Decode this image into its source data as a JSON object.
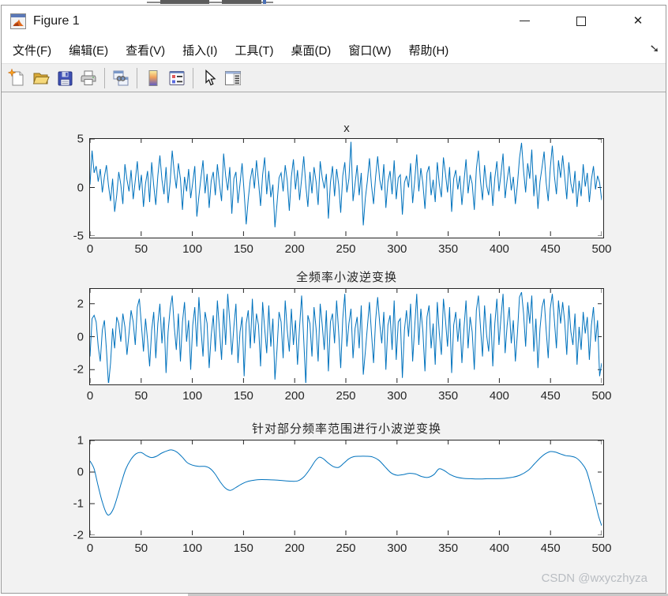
{
  "window": {
    "title": "Figure 1"
  },
  "titlebar": {
    "icon": "matlab-logo-icon",
    "controls": {
      "minimize": "minimize",
      "maximize": "maximize",
      "close": "close"
    }
  },
  "menu": {
    "items": [
      {
        "label": "文件(F)"
      },
      {
        "label": "编辑(E)"
      },
      {
        "label": "查看(V)"
      },
      {
        "label": "插入(I)"
      },
      {
        "label": "工具(T)"
      },
      {
        "label": "桌面(D)"
      },
      {
        "label": "窗口(W)"
      },
      {
        "label": "帮助(H)"
      }
    ],
    "overflow_arrow": "➘"
  },
  "toolbar": {
    "buttons": [
      {
        "icon": "new-figure-icon"
      },
      {
        "icon": "open-file-icon"
      },
      {
        "icon": "save-figure-icon"
      },
      {
        "icon": "print-figure-icon"
      },
      {
        "icon": "link-plot-icon"
      },
      {
        "icon": "insert-colorbar-icon"
      },
      {
        "icon": "insert-legend-icon"
      },
      {
        "icon": "edit-plot-icon"
      },
      {
        "icon": "property-inspector-icon"
      }
    ]
  },
  "watermark": {
    "text": "CSDN @wxyczhyza"
  },
  "colors": {
    "line": "#0072BD",
    "figure_bg": "#f2f2f2",
    "axes_bg": "#ffffff",
    "axis_color": "#262626",
    "tick_text": "#262626"
  },
  "chart_data": [
    {
      "type": "line",
      "title": "x",
      "xlim": [
        0,
        500
      ],
      "ylim": [
        -5,
        5
      ],
      "x_ticks": [
        0,
        50,
        100,
        150,
        200,
        250,
        300,
        350,
        400,
        450,
        500
      ],
      "y_ticks": [
        5,
        0,
        -5
      ],
      "grid": false,
      "legend": null,
      "y": [
        0.3,
        3.8,
        1.5,
        2.2,
        0.6,
        1.9,
        -0.5,
        1.1,
        2.3,
        0.2,
        -1.4,
        0.9,
        -2.5,
        -0.8,
        1.6,
        0.3,
        -1.7,
        2.4,
        0.8,
        -0.4,
        1.8,
        -1.2,
        0.7,
        2.7,
        -0.3,
        1.3,
        -2.0,
        0.4,
        1.7,
        -1.5,
        2.6,
        0.2,
        -1.8,
        1.2,
        3.3,
        0.8,
        -0.7,
        2.1,
        -1.6,
        0.6,
        3.8,
        1.5,
        -0.1,
        2.5,
        0.9,
        -2.3,
        1.1,
        -0.4,
        1.9,
        -1.1,
        0.5,
        2.2,
        -3.0,
        -0.9,
        1.0,
        2.8,
        -0.6,
        1.4,
        -2.1,
        0.7,
        1.6,
        -0.8,
        2.4,
        0.3,
        -1.4,
        3.5,
        1.2,
        -0.3,
        2.1,
        -2.7,
        0.9,
        1.6,
        -1.6,
        0.4,
        2.5,
        -0.5,
        -3.8,
        -1.2,
        0.8,
        2.0,
        -0.1,
        2.8,
        0.6,
        -1.9,
        1.3,
        3.1,
        -0.7,
        1.7,
        -1.0,
        0.3,
        -4.1,
        -1.7,
        1.0,
        1.5,
        -0.4,
        2.3,
        0.7,
        -2.4,
        1.1,
        2.9,
        -0.2,
        1.8,
        -1.3,
        0.9,
        3.2,
        0.2,
        -2.0,
        1.6,
        -0.6,
        2.1,
        0.6,
        -1.8,
        2.7,
        1.0,
        -0.1,
        1.4,
        -3.2,
        0.5,
        2.2,
        -0.9,
        1.9,
        0.3,
        -2.6,
        1.2,
        2.6,
        -0.5,
        0.9,
        4.7,
        -1.4,
        0.4,
        2.3,
        -0.8,
        1.5,
        -3.9,
        -1.1,
        0.7,
        3.0,
        0.2,
        -1.7,
        1.1,
        3.2,
        0.8,
        -0.3,
        2.4,
        -2.1,
        0.6,
        1.7,
        -0.7,
        2.8,
        -1.2,
        1.0,
        1.3,
        -2.8,
        0.5,
        1.2,
        0.0,
        2.5,
        -1.6,
        0.7,
        3.4,
        -0.4,
        2.0,
        0.4,
        -2.2,
        1.5,
        2.2,
        -0.8,
        0.8,
        -1.5,
        2.6,
        0.3,
        -1.0,
        3.1,
        1.4,
        -0.5,
        2.1,
        -2.5,
        0.9,
        1.8,
        -0.2,
        1.2,
        -1.8,
        0.6,
        2.9,
        -0.6,
        1.3,
        0.4,
        -2.3,
        1.9,
        3.8,
        0.7,
        -1.3,
        2.3,
        0.2,
        -0.8,
        1.6,
        -1.9,
        1.0,
        2.7,
        -0.4,
        1.4,
        3.5,
        -1.1,
        0.8,
        2.2,
        -0.3,
        1.1,
        -1.7,
        0.3,
        3.0,
        4.6,
        1.7,
        -0.5,
        2.5,
        0.9,
        3.9,
        -0.9,
        1.3,
        -2.2,
        0.6,
        2.1,
        3.7,
        0.5,
        -1.4,
        2.0,
        4.3,
        1.2,
        -0.7,
        2.8,
        1.0,
        3.3,
        1.1,
        -1.2,
        2.6,
        0.4,
        -0.6,
        1.7,
        -2.0,
        0.7,
        -0.9,
        2.4,
        0.1,
        1.5,
        -1.5,
        0.8,
        2.2,
        -0.2,
        1.2,
        0.5,
        -1.3
      ]
    },
    {
      "type": "line",
      "title": "全频率小波逆变换",
      "xlim": [
        0,
        500
      ],
      "ylim": [
        -2.8,
        2.9
      ],
      "x_ticks": [
        0,
        50,
        100,
        150,
        200,
        250,
        300,
        350,
        400,
        450,
        500
      ],
      "y_ticks": [
        2,
        0,
        -2
      ],
      "grid": false,
      "legend": null,
      "y": [
        -1.2,
        1.1,
        1.3,
        0.9,
        -0.6,
        -1.5,
        0.4,
        1.0,
        -0.8,
        -2.9,
        -1.6,
        0.5,
        -0.7,
        1.2,
        0.8,
        -0.3,
        1.4,
        0.6,
        -1.1,
        0.2,
        1.6,
        0.9,
        -0.5,
        1.8,
        2.3,
        0.7,
        -0.9,
        1.1,
        -0.2,
        -1.8,
        0.4,
        1.5,
        -1.3,
        0.8,
        2.0,
        -0.4,
        1.2,
        -2.2,
        0.3,
        1.7,
        2.5,
        0.6,
        -0.8,
        1.4,
        -1.5,
        0.9,
        2.1,
        -0.3,
        1.0,
        -2.0,
        0.7,
        1.8,
        -0.6,
        2.4,
        0.5,
        -1.2,
        1.5,
        0.8,
        -1.9,
        0.1,
        1.3,
        -0.9,
        2.2,
        0.4,
        -1.4,
        1.7,
        -0.5,
        2.6,
        0.9,
        -1.1,
        0.6,
        2.0,
        -1.6,
        0.3,
        1.2,
        -2.4,
        0.8,
        1.6,
        -0.7,
        2.3,
        -0.4,
        1.4,
        0.7,
        -1.8,
        2.1,
        0.5,
        -1.0,
        1.9,
        -0.6,
        1.1,
        -2.6,
        -0.8,
        1.5,
        0.9,
        -1.3,
        2.2,
        0.4,
        -0.9,
        1.7,
        -0.5,
        1.0,
        -1.7,
        0.6,
        2.5,
        -0.2,
        -2.9,
        1.3,
        0.8,
        -1.2,
        1.8,
        0.5,
        -1.5,
        2.0,
        0.7,
        -0.8,
        1.6,
        -2.1,
        0.9,
        1.4,
        -0.4,
        2.2,
        0.3,
        -1.9,
        1.1,
        2.6,
        -0.6,
        0.8,
        1.7,
        -1.3,
        0.5,
        1.2,
        -0.7,
        1.9,
        -2.3,
        -0.9,
        0.6,
        2.1,
        0.2,
        -1.6,
        1.0,
        2.4,
        0.8,
        -0.4,
        1.5,
        -2.0,
        0.7,
        1.3,
        -0.8,
        2.2,
        -1.4,
        0.9,
        1.1,
        -2.5,
        0.4,
        1.6,
        0.0,
        2.0,
        -1.5,
        0.6,
        2.6,
        -0.5,
        1.7,
        0.3,
        -2.1,
        1.2,
        1.9,
        -0.7,
        0.8,
        -1.7,
        2.1,
        0.2,
        -1.1,
        2.3,
        1.0,
        -0.6,
        1.8,
        -2.2,
        0.7,
        1.5,
        -0.3,
        1.1,
        -1.6,
        0.5,
        2.2,
        -0.7,
        1.2,
        0.3,
        -2.0,
        1.6,
        2.5,
        0.6,
        -1.2,
        1.9,
        0.1,
        -0.9,
        1.4,
        -1.8,
        0.8,
        2.3,
        -0.5,
        1.2,
        2.6,
        -1.0,
        0.7,
        1.8,
        -0.4,
        1.0,
        -1.5,
        0.2,
        2.4,
        2.7,
        1.4,
        -0.6,
        2.1,
        0.8,
        2.5,
        -0.9,
        1.1,
        -1.9,
        0.5,
        1.8,
        2.3,
        0.4,
        -1.3,
        1.7,
        2.6,
        1.0,
        -0.7,
        2.2,
        0.8,
        2.1,
        0.9,
        -1.1,
        1.9,
        0.3,
        -0.5,
        1.4,
        -1.7,
        0.6,
        -0.8,
        1.5,
        0.2,
        1.2,
        -1.4,
        0.7,
        1.8,
        -0.3,
        1.0,
        -2.4,
        -1.6
      ]
    },
    {
      "type": "line",
      "title": "针对部分频率范围进行小波逆变换",
      "xlim": [
        0,
        500
      ],
      "ylim": [
        -2,
        1
      ],
      "x_ticks": [
        0,
        50,
        100,
        150,
        200,
        250,
        300,
        350,
        400,
        450,
        500
      ],
      "y_ticks": [
        1,
        0,
        -1,
        -2
      ],
      "grid": false,
      "legend": null,
      "smooth": true,
      "x": [
        0,
        4,
        8,
        12,
        16,
        19,
        23,
        27,
        31,
        35,
        40,
        45,
        50,
        55,
        60,
        65,
        70,
        76,
        80,
        85,
        90,
        95,
        100,
        106,
        112,
        117,
        122,
        127,
        132,
        137,
        142,
        147,
        152,
        158,
        165,
        172,
        180,
        188,
        196,
        203,
        209,
        215,
        220,
        224,
        228,
        233,
        238,
        243,
        248,
        253,
        258,
        264,
        270,
        276,
        282,
        288,
        294,
        300,
        306,
        312,
        318,
        324,
        330,
        336,
        341,
        346,
        352,
        358,
        365,
        372,
        380,
        388,
        396,
        404,
        412,
        420,
        428,
        434,
        440,
        445,
        450,
        455,
        460,
        465,
        470,
        475,
        480,
        485,
        490,
        494,
        497,
        500
      ],
      "y": [
        0.35,
        0.1,
        -0.45,
        -0.95,
        -1.3,
        -1.35,
        -1.15,
        -0.75,
        -0.3,
        0.1,
        0.4,
        0.58,
        0.62,
        0.52,
        0.46,
        0.5,
        0.6,
        0.68,
        0.7,
        0.63,
        0.48,
        0.3,
        0.22,
        0.18,
        0.18,
        0.12,
        -0.05,
        -0.3,
        -0.5,
        -0.58,
        -0.5,
        -0.4,
        -0.32,
        -0.27,
        -0.24,
        -0.24,
        -0.25,
        -0.27,
        -0.29,
        -0.28,
        -0.15,
        0.1,
        0.35,
        0.47,
        0.42,
        0.28,
        0.17,
        0.15,
        0.28,
        0.42,
        0.49,
        0.5,
        0.5,
        0.48,
        0.38,
        0.18,
        -0.02,
        -0.1,
        -0.08,
        -0.04,
        -0.06,
        -0.14,
        -0.17,
        -0.08,
        0.1,
        0.05,
        -0.08,
        -0.16,
        -0.2,
        -0.21,
        -0.22,
        -0.21,
        -0.21,
        -0.2,
        -0.17,
        -0.1,
        0.05,
        0.25,
        0.45,
        0.58,
        0.65,
        0.63,
        0.57,
        0.52,
        0.5,
        0.45,
        0.3,
        0.05,
        -0.5,
        -1.0,
        -1.4,
        -1.7
      ]
    }
  ]
}
